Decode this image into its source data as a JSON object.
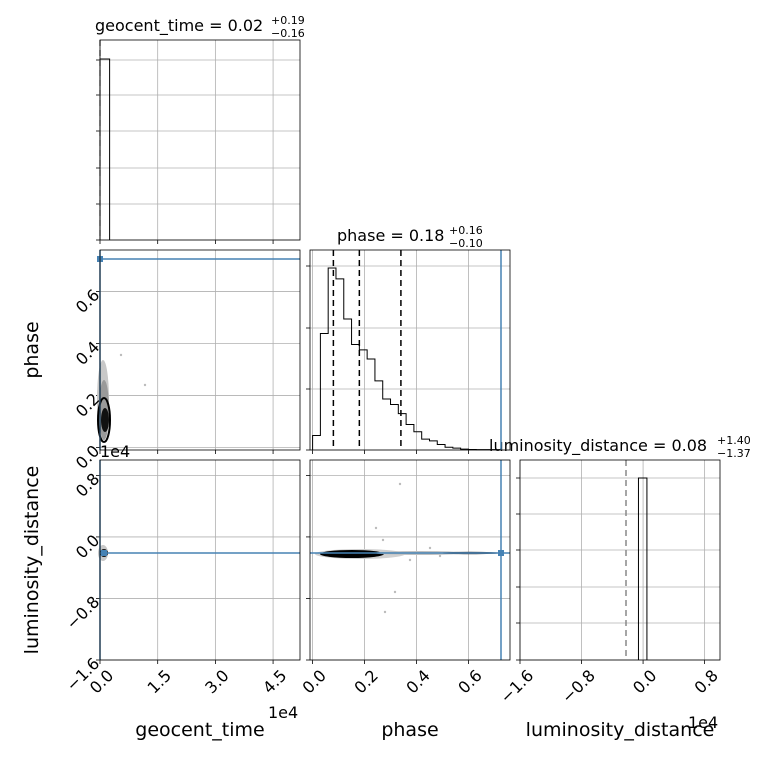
{
  "chart_data": {
    "type": "corner",
    "parameters": [
      "geocent_time",
      "phase",
      "luminosity_distance"
    ],
    "truth": {
      "geocent_time": 0,
      "phase": 0.75,
      "luminosity_distance": 0
    },
    "quantile_lines": [
      "dashed",
      "dashed",
      "dashed"
    ],
    "titles": [
      {
        "param": "geocent_time",
        "text": "geocent_time = 0.02",
        "plus": "+0.19",
        "minus": "−0.16"
      },
      {
        "param": "phase",
        "text": "phase = 0.18",
        "plus": "+0.16",
        "minus": "−0.10"
      },
      {
        "param": "luminosity_distance",
        "text": "luminosity_distance = 0.08",
        "plus": "+1.40",
        "minus": "−1.37"
      }
    ],
    "axes": {
      "geocent_time": {
        "range": [
          0,
          52000
        ],
        "ticks": [
          0,
          15000,
          30000,
          45000
        ],
        "tick_labels": [
          "0.0",
          "1.5",
          "3.0",
          "4.5"
        ],
        "offset": "1e4",
        "xlabel": "geocent_time"
      },
      "phase": {
        "range": [
          -0.01,
          0.76
        ],
        "ticks": [
          0.0,
          0.2,
          0.4,
          0.6
        ],
        "tick_labels": [
          "0.0",
          "0.2",
          "0.4",
          "0.6"
        ],
        "ylabel_ticks": [
          0.0,
          0.2,
          0.4,
          0.6
        ],
        "ylabel_tick_labels": [
          "0.0",
          "0.2",
          "0.4",
          "0.6"
        ],
        "xlabel": "phase",
        "ylabel": "phase"
      },
      "luminosity_distance": {
        "range": [
          -16000,
          10000
        ],
        "ticks": [
          -16000,
          -8000,
          0,
          8000
        ],
        "tick_labels": [
          "−1.6",
          "−0.8",
          "0.0",
          "0.8"
        ],
        "offset": "1e4",
        "xlabel": "luminosity_distance",
        "ylabel": "luminosity_distance"
      }
    },
    "histograms": {
      "geocent_time": {
        "bin_edges": [
          0,
          2500
        ],
        "counts": [
          1.0
        ]
      },
      "phase": {
        "bin_edges": [
          0.0,
          0.03,
          0.06,
          0.09,
          0.12,
          0.15,
          0.18,
          0.21,
          0.24,
          0.27,
          0.3,
          0.33,
          0.36,
          0.39,
          0.42,
          0.45,
          0.48,
          0.51,
          0.54,
          0.57,
          0.6,
          0.63,
          0.66,
          0.69,
          0.72
        ],
        "counts": [
          0.08,
          0.64,
          1.0,
          0.94,
          0.72,
          0.58,
          0.55,
          0.5,
          0.38,
          0.28,
          0.25,
          0.2,
          0.14,
          0.1,
          0.06,
          0.05,
          0.03,
          0.015,
          0.01,
          0.005,
          0.003,
          0.002,
          0.002,
          0.002
        ]
      },
      "luminosity_distance": {
        "bin_edges": [
          -600,
          500
        ],
        "counts": [
          1.0
        ]
      }
    },
    "phase_quantiles": [
      0.08,
      0.18,
      0.34
    ]
  }
}
